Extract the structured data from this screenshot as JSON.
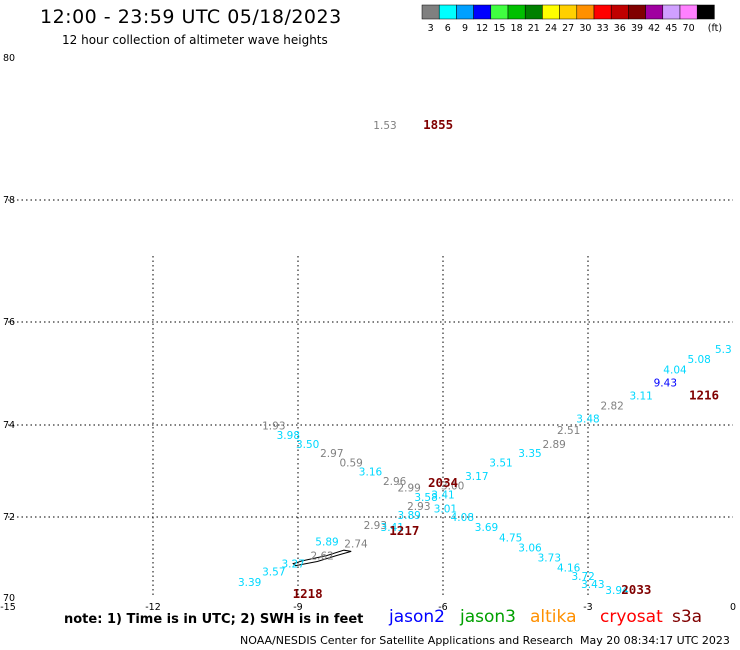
{
  "header": {
    "title": "12:00 - 23:59 UTC 05/18/2023",
    "subtitle": "12 hour collection of altimeter wave heights"
  },
  "legend": {
    "unit_label": "(ft)",
    "bins": [
      {
        "label": "3",
        "color": "#808080"
      },
      {
        "label": "6",
        "color": "#00ffff"
      },
      {
        "label": "9",
        "color": "#00a0ff"
      },
      {
        "label": "12",
        "color": "#0000ff"
      },
      {
        "label": "15",
        "color": "#40ff40"
      },
      {
        "label": "18",
        "color": "#00c000"
      },
      {
        "label": "21",
        "color": "#008000"
      },
      {
        "label": "24",
        "color": "#ffff00"
      },
      {
        "label": "27",
        "color": "#ffd000"
      },
      {
        "label": "30",
        "color": "#ff9000"
      },
      {
        "label": "33",
        "color": "#ff0000"
      },
      {
        "label": "36",
        "color": "#c00000"
      },
      {
        "label": "39",
        "color": "#800000"
      },
      {
        "label": "42",
        "color": "#a000a0"
      },
      {
        "label": "45",
        "color": "#d0a0ff"
      },
      {
        "label": "70",
        "color": "#ff80ff"
      },
      {
        "label": "",
        "color": "#000000"
      }
    ]
  },
  "map": {
    "lon_range": [
      -15,
      0
    ],
    "lat_range": [
      70,
      80
    ],
    "lon_ticks": [
      {
        "value": -15,
        "label": "-15"
      },
      {
        "value": -12,
        "label": "-12"
      },
      {
        "value": -9,
        "label": "-9"
      },
      {
        "value": -6,
        "label": "-6"
      },
      {
        "value": -3,
        "label": "-3"
      },
      {
        "value": 0,
        "label": "0"
      }
    ],
    "lat_ticks": [
      {
        "value": 70,
        "label": "70"
      },
      {
        "value": 72,
        "label": "72"
      },
      {
        "value": 74,
        "label": "74"
      },
      {
        "value": 76,
        "label": "76"
      },
      {
        "value": 78,
        "label": "78"
      },
      {
        "value": 80,
        "label": "80"
      }
    ]
  },
  "observations": [
    {
      "lon": -7.2,
      "lat": 79.0,
      "label": "1.53",
      "color": "#808080"
    },
    {
      "lon": -9.5,
      "lat": 73.9,
      "label": "1.93",
      "color": "#808080"
    },
    {
      "lon": -9.2,
      "lat": 73.7,
      "label": "3.98",
      "color": "#00d8ff"
    },
    {
      "lon": -8.8,
      "lat": 73.5,
      "label": "3.50",
      "color": "#00d8ff"
    },
    {
      "lon": -8.3,
      "lat": 73.3,
      "label": "2.97",
      "color": "#808080"
    },
    {
      "lon": -7.9,
      "lat": 73.1,
      "label": "0.59",
      "color": "#808080"
    },
    {
      "lon": -7.5,
      "lat": 72.9,
      "label": "3.16",
      "color": "#00d8ff"
    },
    {
      "lon": -7.0,
      "lat": 72.7,
      "label": "2.96",
      "color": "#808080"
    },
    {
      "lon": -6.7,
      "lat": 72.55,
      "label": "2.99",
      "color": "#808080"
    },
    {
      "lon": -6.35,
      "lat": 72.35,
      "label": "3.58",
      "color": "#00d8ff"
    },
    {
      "lon": -6.0,
      "lat": 72.4,
      "label": "3.41",
      "color": "#00d8ff"
    },
    {
      "lon": -6.5,
      "lat": 72.15,
      "label": "2.93",
      "color": "#808080"
    },
    {
      "lon": -5.95,
      "lat": 72.1,
      "label": "3.01",
      "color": "#00d8ff"
    },
    {
      "lon": -5.8,
      "lat": 72.6,
      "label": "3.00",
      "color": "#808080"
    },
    {
      "lon": -5.3,
      "lat": 72.8,
      "label": "3.17",
      "color": "#00d8ff"
    },
    {
      "lon": -4.8,
      "lat": 73.1,
      "label": "3.51",
      "color": "#00d8ff"
    },
    {
      "lon": -4.2,
      "lat": 73.3,
      "label": "3.35",
      "color": "#00d8ff"
    },
    {
      "lon": -3.7,
      "lat": 73.5,
      "label": "2.89",
      "color": "#808080"
    },
    {
      "lon": -3.4,
      "lat": 73.8,
      "label": "2.51",
      "color": "#808080"
    },
    {
      "lon": -3.0,
      "lat": 74.05,
      "label": "3.48",
      "color": "#00d8ff"
    },
    {
      "lon": -2.5,
      "lat": 74.3,
      "label": "2.82",
      "color": "#808080"
    },
    {
      "lon": -1.9,
      "lat": 74.5,
      "label": "3.11",
      "color": "#00d8ff"
    },
    {
      "lon": -1.4,
      "lat": 74.75,
      "label": "9.43",
      "color": "#0000ff"
    },
    {
      "lon": -1.2,
      "lat": 75.0,
      "label": "4.04",
      "color": "#00d8ff"
    },
    {
      "lon": -0.7,
      "lat": 75.2,
      "label": "5.08",
      "color": "#00d8ff"
    },
    {
      "lon": -0.2,
      "lat": 75.4,
      "label": "5.3",
      "color": "#00d8ff"
    },
    {
      "lon": -7.4,
      "lat": 71.7,
      "label": "2.93",
      "color": "#808080"
    },
    {
      "lon": -7.8,
      "lat": 71.25,
      "label": "2.74",
      "color": "#808080"
    },
    {
      "lon": -8.4,
      "lat": 71.3,
      "label": "5.89",
      "color": "#00d8ff"
    },
    {
      "lon": -7.05,
      "lat": 71.65,
      "label": "3.41",
      "color": "#00d8ff"
    },
    {
      "lon": -6.7,
      "lat": 71.95,
      "label": "3.89",
      "color": "#00d8ff"
    },
    {
      "lon": -8.5,
      "lat": 70.95,
      "label": "2.62",
      "color": "#808080"
    },
    {
      "lon": -9.1,
      "lat": 70.75,
      "label": "3.27",
      "color": "#00d8ff"
    },
    {
      "lon": -9.5,
      "lat": 70.55,
      "label": "3.57",
      "color": "#00d8ff"
    },
    {
      "lon": -10.0,
      "lat": 70.3,
      "label": "3.39",
      "color": "#00d8ff"
    },
    {
      "lon": -5.6,
      "lat": 71.9,
      "label": "4.08",
      "color": "#00d8ff"
    },
    {
      "lon": -5.1,
      "lat": 71.65,
      "label": "3.69",
      "color": "#00d8ff"
    },
    {
      "lon": -4.6,
      "lat": 71.4,
      "label": "4.75",
      "color": "#00d8ff"
    },
    {
      "lon": -4.2,
      "lat": 71.15,
      "label": "3.06",
      "color": "#00d8ff"
    },
    {
      "lon": -3.8,
      "lat": 70.9,
      "label": "3.73",
      "color": "#00d8ff"
    },
    {
      "lon": -3.4,
      "lat": 70.65,
      "label": "4.16",
      "color": "#00d8ff"
    },
    {
      "lon": -3.1,
      "lat": 70.45,
      "label": "3.72",
      "color": "#00d8ff"
    },
    {
      "lon": -2.9,
      "lat": 70.25,
      "label": "3.43",
      "color": "#00d8ff"
    },
    {
      "lon": -2.4,
      "lat": 70.1,
      "label": "3.94",
      "color": "#00d8ff"
    }
  ],
  "pass_times": [
    {
      "lon": -6.1,
      "lat": 79.0,
      "label": "1855"
    },
    {
      "lon": -6.0,
      "lat": 72.65,
      "label": "2034"
    },
    {
      "lon": -6.8,
      "lat": 71.55,
      "label": "1217"
    },
    {
      "lon": -0.6,
      "lat": 74.5,
      "label": "1216"
    },
    {
      "lon": -2.0,
      "lat": 70.1,
      "label": "2033"
    },
    {
      "lon": -8.8,
      "lat": 70.0,
      "label": "1218"
    }
  ],
  "footer": {
    "note": "note: 1) Time is in UTC; 2) SWH is in feet",
    "satellites": [
      {
        "name": "jason2",
        "color": "#0000ff"
      },
      {
        "name": "jason3",
        "color": "#00a000"
      },
      {
        "name": "altika",
        "color": "#ff9000"
      },
      {
        "name": "cryosat",
        "color": "#ff0000"
      },
      {
        "name": "s3a",
        "color": "#800000"
      }
    ],
    "credit": "NOAA/NESDIS Center for Satellite Applications and Research",
    "timestamp": "May 20 08:34:17 UTC 2023"
  }
}
